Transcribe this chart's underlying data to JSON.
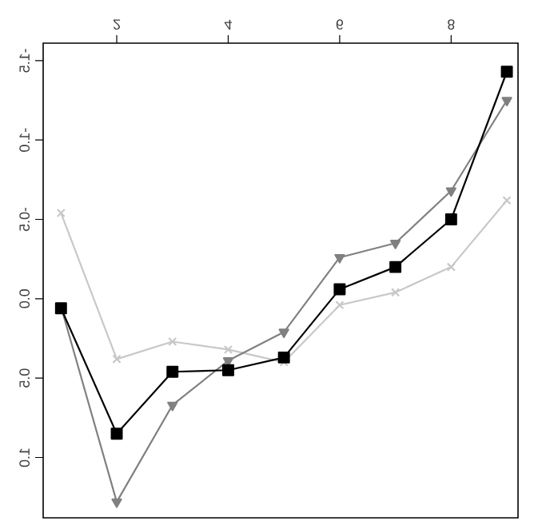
{
  "chart_data": {
    "type": "line",
    "x": [
      1,
      2,
      3,
      4,
      5,
      6,
      7,
      8,
      9
    ],
    "series": [
      {
        "color": "#c8c8c8",
        "marker": "cross",
        "values": [
          -0.54,
          0.38,
          0.27,
          0.32,
          0.4,
          0.04,
          -0.04,
          -0.2,
          -0.62
        ]
      },
      {
        "color": "#808080",
        "marker": "triangle",
        "values": [
          0.05,
          1.28,
          0.67,
          0.39,
          0.21,
          -0.26,
          -0.35,
          -0.68,
          -1.25
        ]
      },
      {
        "color": "#000000",
        "marker": "square",
        "values": [
          0.06,
          0.85,
          0.46,
          0.45,
          0.37,
          -0.06,
          -0.2,
          -0.5,
          -1.43
        ]
      }
    ],
    "xlim": [
      0.68,
      9.2
    ],
    "ylim": [
      1.38,
      -1.61
    ],
    "xticks": [
      2,
      4,
      6,
      8
    ],
    "yticks": [
      -1.5,
      {
        "value": -1.0,
        "label": "-1.0"
      },
      -0.5,
      {
        "value": 0.0,
        "label": "0.0"
      },
      0.5,
      {
        "value": 1.0,
        "label": "1.0"
      }
    ],
    "line_style": "solid"
  }
}
